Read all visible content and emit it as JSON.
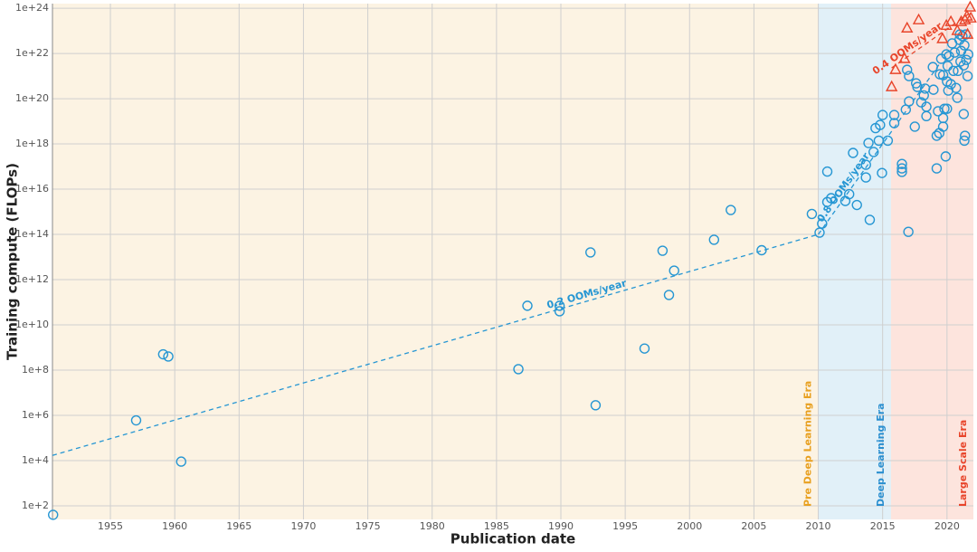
{
  "chart_data": {
    "type": "scatter",
    "xlabel": "Publication date",
    "ylabel": "Training compute (FLOPs)",
    "yscale": "log",
    "grid": true,
    "xlim": [
      1950.5,
      2022.05
    ],
    "ylim": [
      25,
      1.6e+24
    ],
    "xticks": [
      1955,
      1960,
      1965,
      1970,
      1975,
      1980,
      1985,
      1990,
      1995,
      2000,
      2005,
      2010,
      2015,
      2020
    ],
    "yticks": [
      {
        "value": 100.0,
        "label": "1e+2"
      },
      {
        "value": 10000.0,
        "label": "1e+4"
      },
      {
        "value": 1000000.0,
        "label": "1e+6"
      },
      {
        "value": 100000000.0,
        "label": "1e+8"
      },
      {
        "value": 10000000000.0,
        "label": "1e+10"
      },
      {
        "value": 1000000000000.0,
        "label": "1e+12"
      },
      {
        "value": 100000000000000.0,
        "label": "1e+14"
      },
      {
        "value": 1e+16,
        "label": "1e+16"
      },
      {
        "value": 1e+18,
        "label": "1e+18"
      },
      {
        "value": 1e+20,
        "label": "1e+20"
      },
      {
        "value": 1e+22,
        "label": "1e+22"
      },
      {
        "value": 1e+24,
        "label": "1e+24"
      }
    ],
    "era_boundaries": [
      2010,
      2015.65
    ],
    "eras": [
      {
        "name": "Pre Deep Learning Era",
        "background": "#fcf3e3",
        "color": "#e8a020"
      },
      {
        "name": "Deep Learning Era",
        "background": "#e1f0f8",
        "color": "#2a8fd0"
      },
      {
        "name": "Large Scale Era",
        "background": "#fde4dd",
        "color": "#e8442a"
      }
    ],
    "series": [
      {
        "marker": "circle",
        "color": "#2596d3",
        "x": [
          1950.55,
          1957.0,
          1959.1,
          1959.5,
          1960.5,
          1986.7,
          1987.4,
          1989.9,
          1989.9,
          1992.3,
          1992.7,
          1996.5,
          1997.9,
          1998.4,
          1998.8,
          2001.9,
          2003.2,
          2005.6,
          2009.5,
          2010.1,
          2010.3,
          2010.7,
          2010.7,
          2011.0,
          2012.1,
          2012.4,
          2013.0,
          2012.7,
          2013.7,
          2013.7,
          2013.9,
          2014.0,
          2014.3,
          2014.45,
          2014.7,
          2014.8,
          2014.95,
          2015.0,
          2015.4,
          2015.9,
          2015.9,
          2016.5,
          2016.5,
          2016.5,
          2016.8,
          2016.9,
          2017.0,
          2017.05,
          2017.05,
          2017.5,
          2017.6,
          2017.7,
          2018.0,
          2018.2,
          2018.3,
          2018.4,
          2018.4,
          2018.9,
          2018.95,
          2019.2,
          2019.2,
          2019.3,
          2019.4,
          2019.45,
          2019.55,
          2019.7,
          2019.7,
          2019.7,
          2019.8,
          2019.9,
          2019.95,
          2020.0,
          2020.0,
          2020.05,
          2020.1,
          2020.15,
          2020.3,
          2020.4,
          2020.5,
          2020.6,
          2020.7,
          2020.8,
          2020.85,
          2020.97,
          2021.0,
          2021.05,
          2021.1,
          2021.2,
          2021.3,
          2021.35,
          2021.4,
          2021.3,
          2021.35,
          2021.45,
          2021.5,
          2021.6,
          2021.65
        ],
        "values": [
          40,
          600000.0,
          500000000.0,
          400000000.0,
          9000.0,
          110000000.0,
          70000000000.0,
          70000000000.0,
          40000000000.0,
          16000000000000.0,
          2800000.0,
          900000000.0,
          19000000000000.0,
          210000000000.0,
          2500000000000.0,
          58000000000000.0,
          1200000000000000.0,
          20000000000000.0,
          800000000000000.0,
          120000000000000.0,
          300000000000000.0,
          6e+16,
          2700000000000000.0,
          4000000000000000.0,
          3000000000000000.0,
          6000000000000000.0,
          2000000000000000.0,
          4e+17,
          3.3e+16,
          1.2e+17,
          1.1e+18,
          440000000000000.0,
          4.4e+17,
          5e+18,
          1.4e+18,
          6.9e+18,
          5.2e+16,
          1.9e+19,
          1.4e+18,
          1.9e+19,
          8.3e+18,
          1.3e+17,
          8.3e+16,
          5.8e+16,
          3.3e+19,
          1.9e+21,
          130000000000000.0,
          7.6e+19,
          1e+21,
          5.8e+18,
          4.8e+20,
          3.3e+20,
          6.9e+19,
          1.4e+20,
          2.8e+20,
          1.7e+19,
          4.4e+19,
          2.5e+21,
          2.5e+20,
          2.3e+18,
          8.3e+16,
          2.8e+19,
          3e+18,
          1.2e+21,
          5.8e+21,
          1.1e+21,
          1.4e+19,
          5.8e+18,
          3.6e+19,
          2.8e+17,
          9.1e+21,
          5.8e+20,
          3.6e+19,
          2.8e+21,
          2.3e+20,
          7.6e+21,
          4.4e+20,
          2.8e+22,
          1.7e+21,
          1.1e+22,
          3e+20,
          1.1e+20,
          1.7e+21,
          4e+22,
          6.9e+22,
          4.4e+21,
          1.3e+22,
          5.8e+22,
          2.1e+19,
          1.4e+18,
          2.3e+18,
          3e+21,
          2.3e+22,
          6.9e+22,
          5.2e+21,
          1e+21,
          9.1e+21
        ]
      },
      {
        "marker": "triangle",
        "color": "#e8442a",
        "x": [
          2015.7,
          2016.0,
          2016.7,
          2016.9,
          2017.8,
          2019.65,
          2019.95,
          2020.3,
          2020.8,
          2021.1,
          2021.4,
          2021.55,
          2021.8,
          2021.85,
          2021.6
        ],
        "values": [
          3.3e+20,
          1.9e+21,
          5.8e+21,
          1.3e+23,
          3e+23,
          4.4e+22,
          1.7e+23,
          2.5e+23,
          1e+23,
          2.5e+23,
          3e+23,
          4.4e+23,
          1.1e+24,
          3.6e+23,
          6.9e+22
        ]
      }
    ],
    "trends": [
      {
        "label": "0.2 OOMs/year",
        "color": "#2596d3",
        "x": [
          1950.5,
          2010
        ],
        "values": [
          17000.0,
          100000000000000.0
        ]
      },
      {
        "label": "0.8 OOMs/year",
        "color": "#2596d3",
        "x": [
          2010,
          2019.5
        ],
        "values": [
          100000000000000.0,
          4e+21
        ]
      },
      {
        "label": "0.4 OOMs/year",
        "color": "#e8442a",
        "x": [
          2015.7,
          2021.8
        ],
        "values": [
          2.3e+21,
          6.3e+23
        ]
      }
    ]
  }
}
